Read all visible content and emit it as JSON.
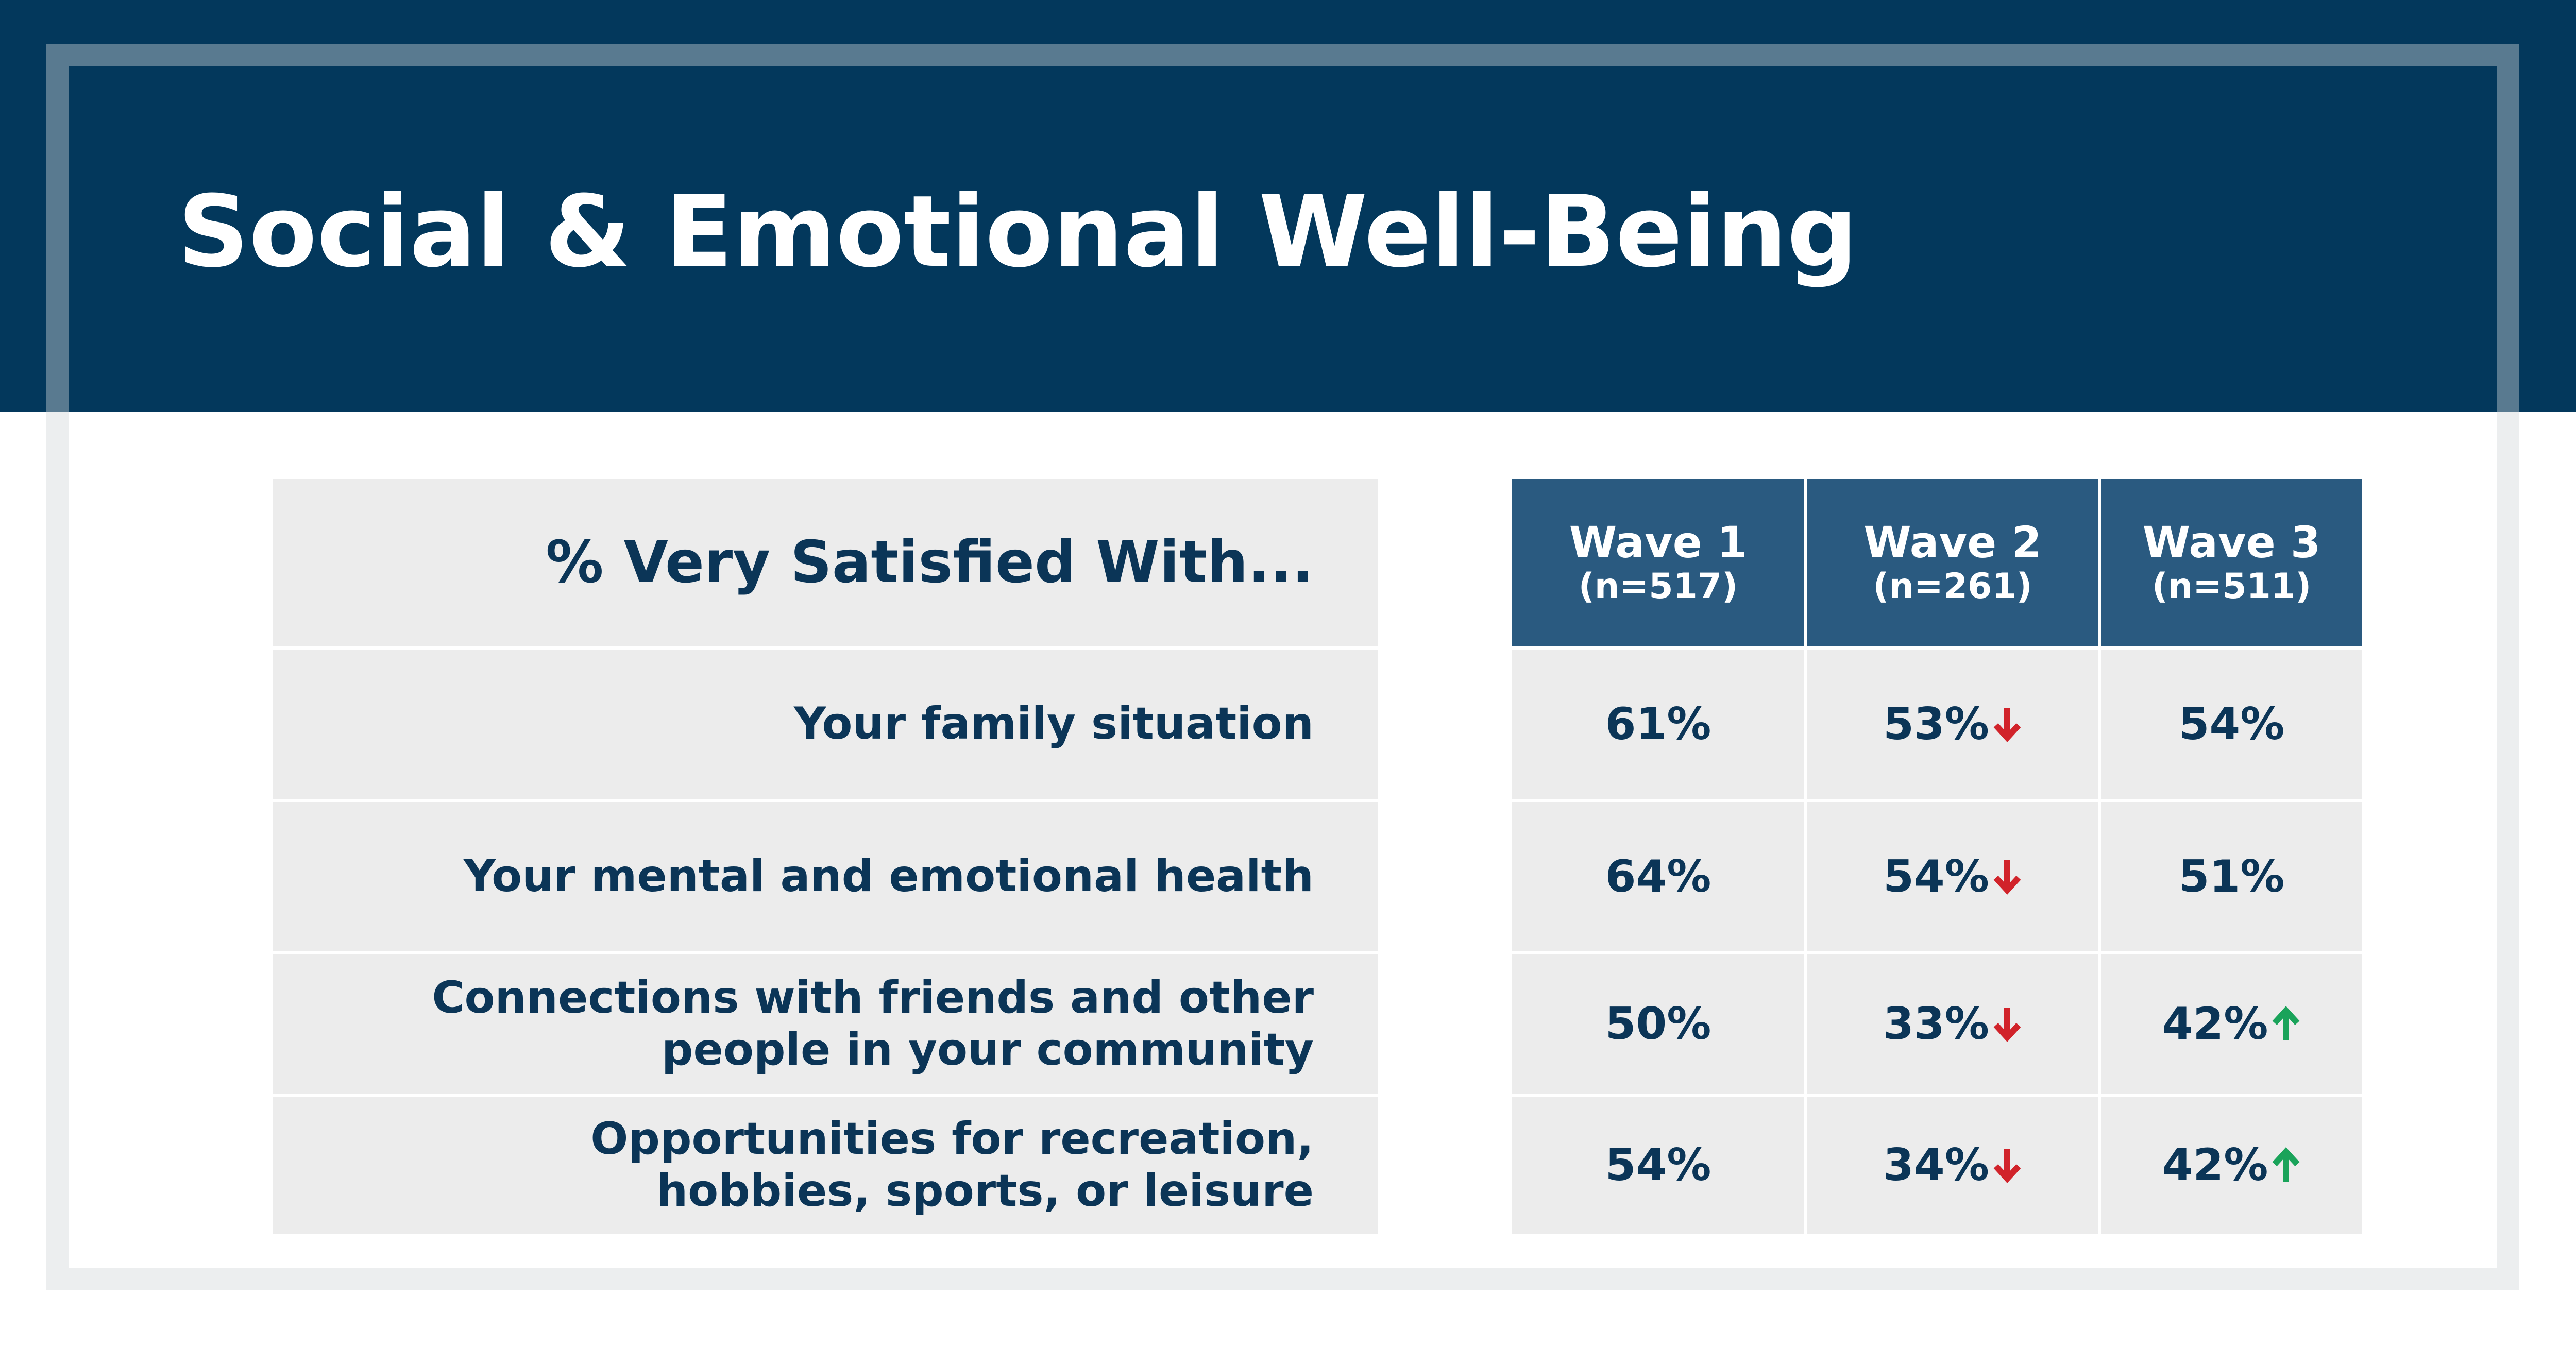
{
  "title": "Social & Emotional Well-Being",
  "colors": {
    "navy": "#03385c",
    "header_blue": "#2a5a80",
    "text": "#0b3557",
    "panel": "#ececec",
    "down": "#d1232a",
    "up": "#1aa35a"
  },
  "chart_data": {
    "type": "table",
    "row_header": "% Very Satisfied With...",
    "columns": [
      {
        "name": "Wave 1",
        "n": "(n=517)"
      },
      {
        "name": "Wave 2",
        "n": "(n=261)"
      },
      {
        "name": "Wave 3",
        "n": "(n=511)"
      }
    ],
    "rows": [
      {
        "label": "Your family situation",
        "cells": [
          {
            "text": "61%",
            "value": 61
          },
          {
            "text": "53%",
            "value": 53,
            "trend": "down"
          },
          {
            "text": "54%",
            "value": 54
          }
        ]
      },
      {
        "label": "Your mental and emotional health",
        "cells": [
          {
            "text": "64%",
            "value": 64
          },
          {
            "text": "54%",
            "value": 54,
            "trend": "down"
          },
          {
            "text": "51%",
            "value": 51
          }
        ]
      },
      {
        "label": "Connections with friends and other\npeople in your community",
        "cells": [
          {
            "text": "50%",
            "value": 50
          },
          {
            "text": "33%",
            "value": 33,
            "trend": "down"
          },
          {
            "text": "42%",
            "value": 42,
            "trend": "up"
          }
        ]
      },
      {
        "label": "Opportunities for recreation,\nhobbies, sports, or leisure",
        "cells": [
          {
            "text": "54%",
            "value": 54
          },
          {
            "text": "34%",
            "value": 34,
            "trend": "down"
          },
          {
            "text": "42%",
            "value": 42,
            "trend": "up"
          }
        ]
      }
    ]
  }
}
